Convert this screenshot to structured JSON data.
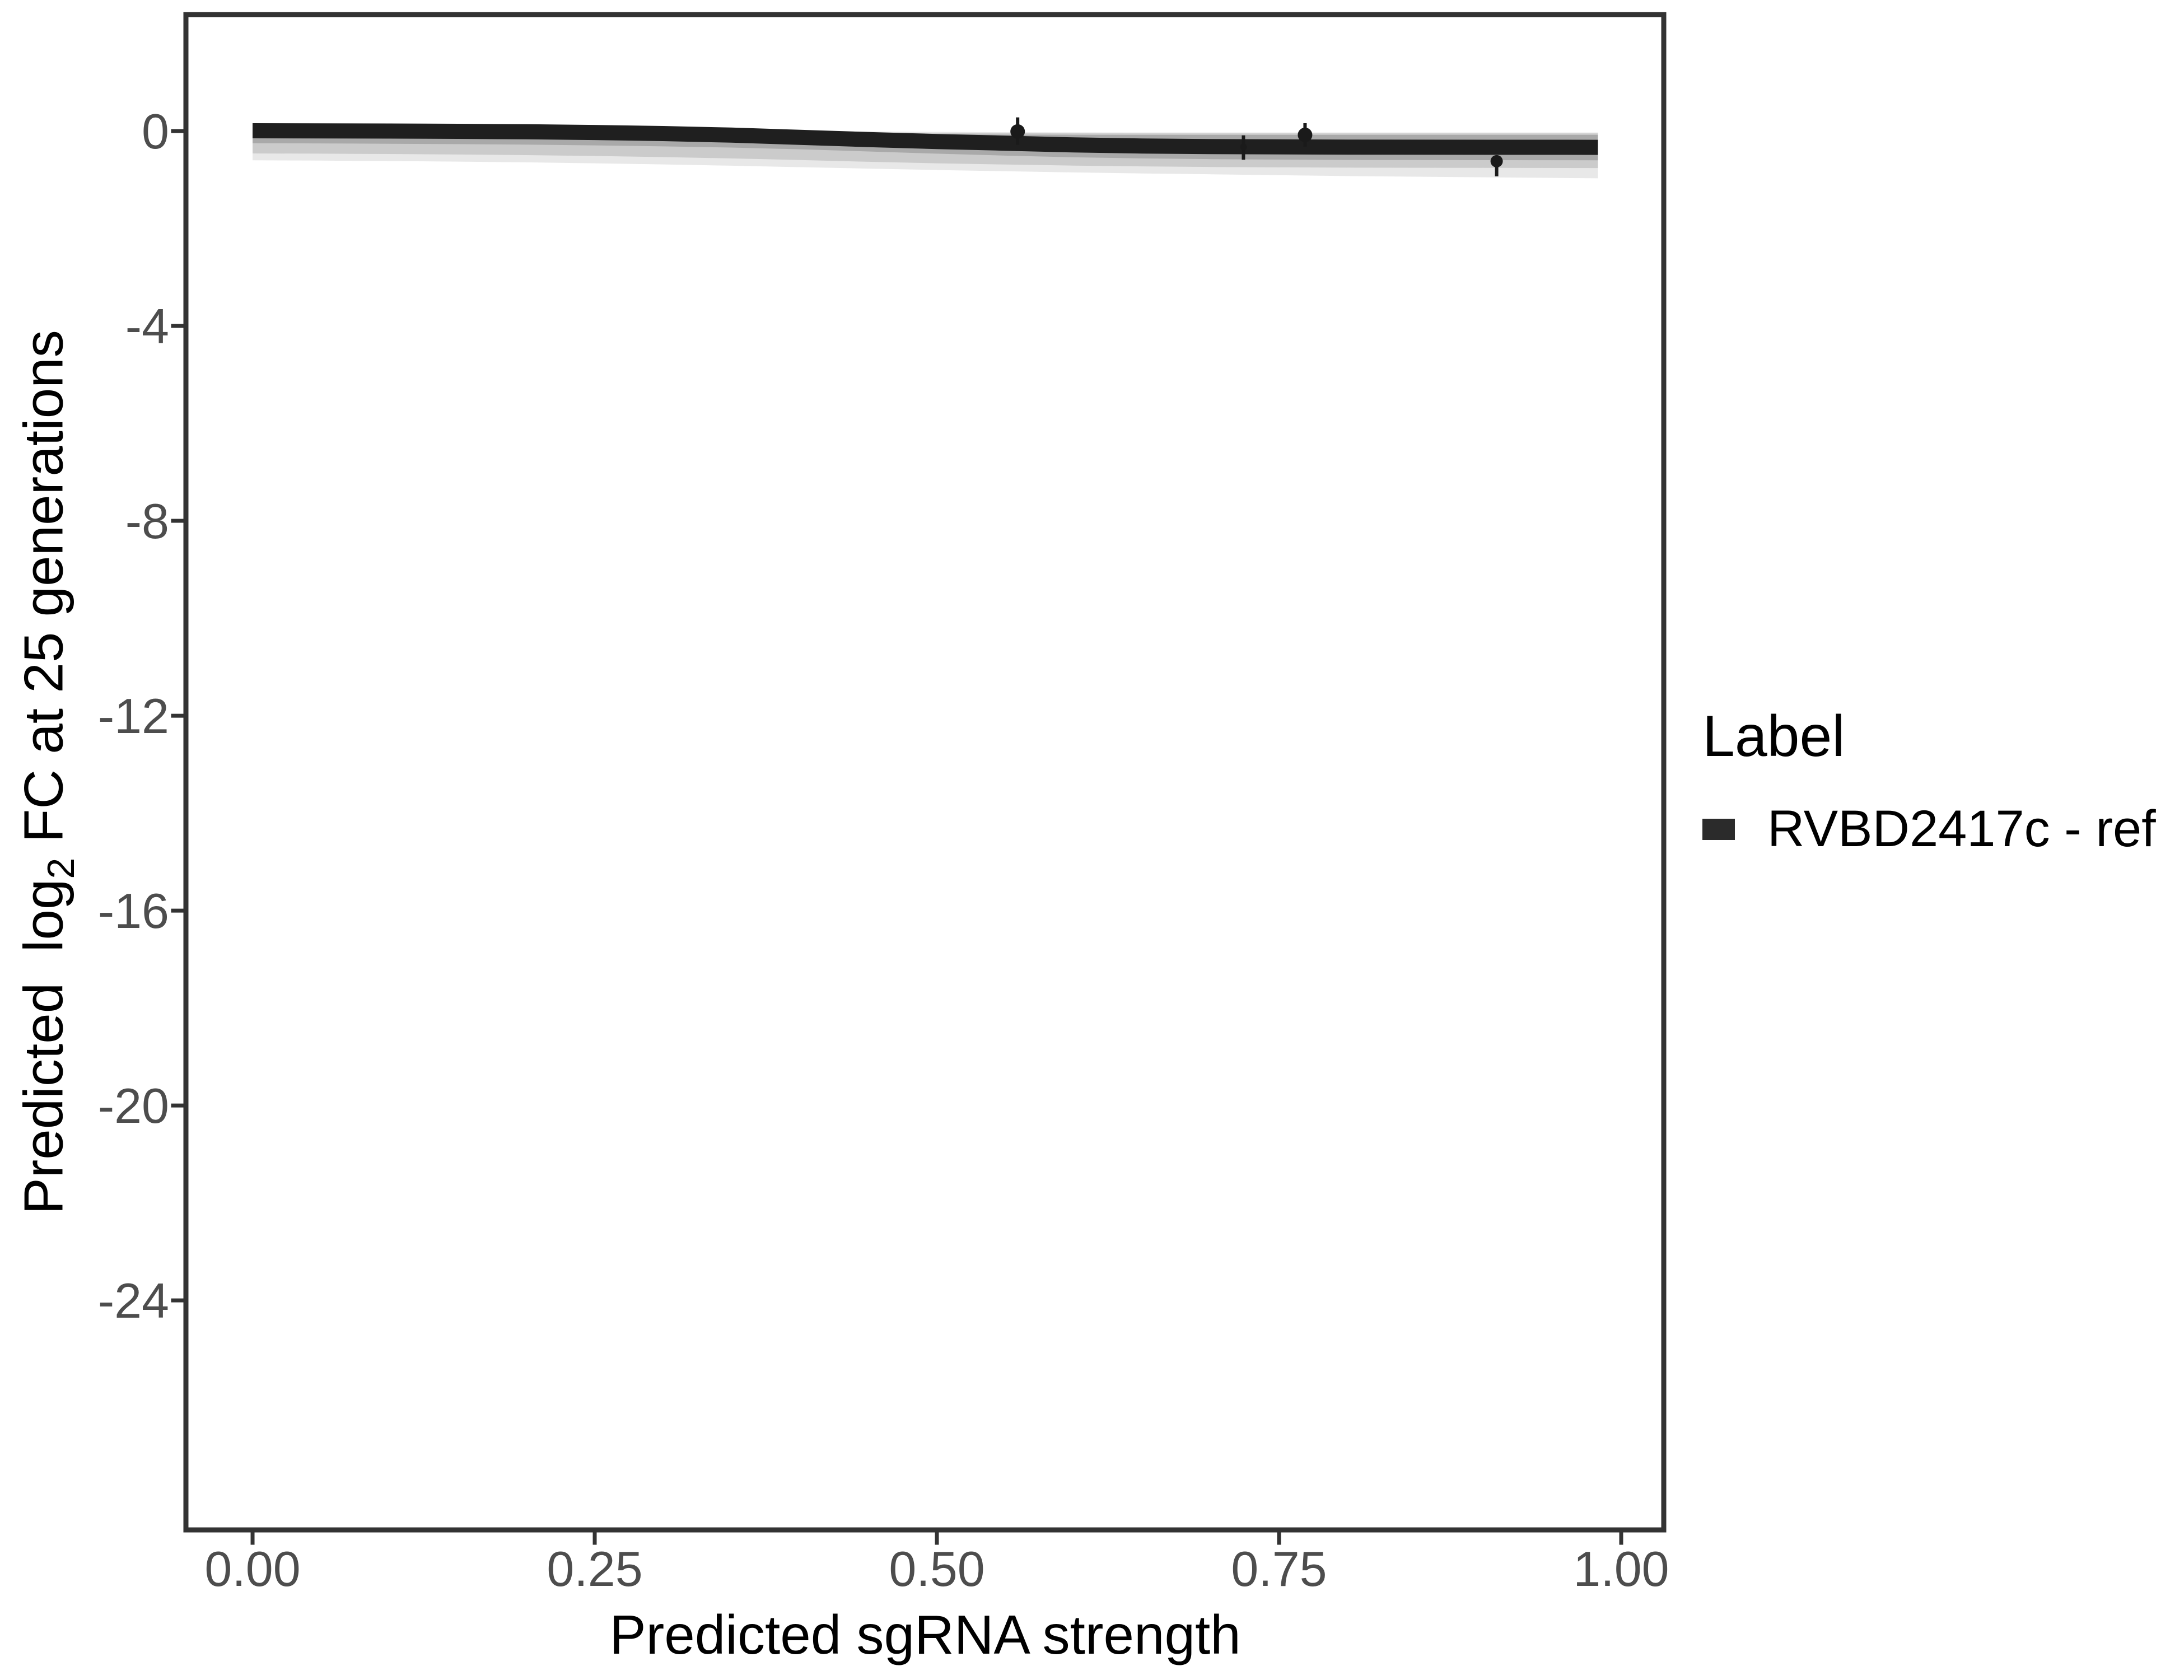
{
  "figure": {
    "background": "#ffffff",
    "panel_border_color": "#333333",
    "tick_color": "#333333",
    "tick_label_color": "#4d4d4d",
    "title_color": "#000000"
  },
  "chart_data": {
    "type": "line",
    "title": "",
    "xlabel": "Predicted sgRNA strength",
    "ylabel_parts": {
      "pre": "Predicted  log",
      "sub": "2",
      "post": " FC at 25 generations"
    },
    "xlim": [
      -0.0487,
      1.0311
    ],
    "ylim": [
      2.39,
      -28.71
    ],
    "grid": false,
    "x_ticks": {
      "values": [
        0,
        0.25,
        0.5,
        0.75,
        1.0
      ],
      "labels": [
        "0.00",
        "0.25",
        "0.50",
        "0.75",
        "1.00"
      ]
    },
    "y_ticks": {
      "values": [
        0,
        -4,
        -8,
        -12,
        -16,
        -20,
        -24
      ],
      "labels": [
        "0",
        "-4",
        "-8",
        "-12",
        "-16",
        "-20",
        "-24"
      ]
    },
    "legend": {
      "title": "Label",
      "position": "right",
      "entries": [
        {
          "label": "RVBD2417c - ref",
          "key_color": "#2b2b2b"
        }
      ]
    },
    "series": [
      {
        "name": "RVBD2417c - ref",
        "color": "#1f1f1f",
        "line_width": 27,
        "x": [
          0,
          0.05,
          0.1,
          0.15,
          0.2,
          0.25,
          0.3,
          0.35,
          0.4,
          0.45,
          0.5,
          0.55,
          0.6,
          0.65,
          0.7,
          0.8,
          0.983
        ],
        "y": [
          0.005,
          0.003,
          0.0,
          -0.006,
          -0.015,
          -0.03,
          -0.052,
          -0.085,
          -0.13,
          -0.175,
          -0.215,
          -0.25,
          -0.285,
          -0.307,
          -0.32,
          -0.332,
          -0.335
        ]
      }
    ],
    "ribbons": [
      {
        "name": "posterior-band-outer",
        "color": "#e8e8e8",
        "x": [
          0,
          0.05,
          0.1,
          0.15,
          0.2,
          0.25,
          0.3,
          0.35,
          0.4,
          0.45,
          0.5,
          0.55,
          0.6,
          0.65,
          0.7,
          0.8,
          0.983
        ],
        "upper": [
          0.08,
          0.078,
          0.075,
          0.07,
          0.062,
          0.052,
          0.038,
          0.022,
          0.005,
          -0.008,
          -0.018,
          -0.025,
          -0.028,
          -0.03,
          -0.03,
          -0.03,
          -0.03
        ],
        "lower": [
          -0.6,
          -0.607,
          -0.616,
          -0.628,
          -0.643,
          -0.662,
          -0.686,
          -0.712,
          -0.742,
          -0.772,
          -0.8,
          -0.826,
          -0.85,
          -0.87,
          -0.888,
          -0.925,
          -0.97
        ]
      },
      {
        "name": "posterior-band-mid",
        "color": "#cbcbcb",
        "x": [
          0,
          0.05,
          0.1,
          0.15,
          0.2,
          0.25,
          0.3,
          0.35,
          0.4,
          0.45,
          0.5,
          0.55,
          0.6,
          0.65,
          0.7,
          0.8,
          0.983
        ],
        "upper": [
          0.06,
          0.058,
          0.055,
          0.05,
          0.042,
          0.032,
          0.018,
          0.002,
          -0.015,
          -0.028,
          -0.038,
          -0.045,
          -0.048,
          -0.05,
          -0.05,
          -0.05,
          -0.05
        ],
        "lower": [
          -0.46,
          -0.465,
          -0.472,
          -0.482,
          -0.495,
          -0.512,
          -0.535,
          -0.562,
          -0.595,
          -0.632,
          -0.662,
          -0.688,
          -0.71,
          -0.726,
          -0.738,
          -0.752,
          -0.76
        ]
      },
      {
        "name": "posterior-band-inner",
        "color": "#a9a9a9",
        "x": [
          0,
          0.05,
          0.1,
          0.15,
          0.2,
          0.25,
          0.3,
          0.35,
          0.4,
          0.45,
          0.5,
          0.55,
          0.6,
          0.65,
          0.7,
          0.8,
          0.983
        ],
        "upper": [
          0.03,
          0.028,
          0.025,
          0.02,
          0.012,
          0.002,
          -0.012,
          -0.028,
          -0.045,
          -0.058,
          -0.068,
          -0.075,
          -0.078,
          -0.08,
          -0.08,
          -0.08,
          -0.08
        ],
        "lower": [
          -0.25,
          -0.255,
          -0.262,
          -0.27,
          -0.28,
          -0.295,
          -0.315,
          -0.34,
          -0.375,
          -0.42,
          -0.465,
          -0.505,
          -0.54,
          -0.562,
          -0.578,
          -0.595,
          -0.6
        ]
      }
    ],
    "points": {
      "color": "#1a1a1a",
      "whisker_width": 6,
      "items": [
        {
          "x": 0.559,
          "y": -0.01,
          "ymin": -0.28,
          "ymax": 0.28,
          "r": 13
        },
        {
          "x": 0.724,
          "y": -0.33,
          "ymin": -0.59,
          "ymax": -0.09,
          "r": 6
        },
        {
          "x": 0.769,
          "y": -0.08,
          "ymin": -0.32,
          "ymax": 0.16,
          "r": 13
        },
        {
          "x": 0.909,
          "y": -0.62,
          "ymin": -0.93,
          "ymax": -0.51,
          "r": 11
        }
      ]
    }
  }
}
